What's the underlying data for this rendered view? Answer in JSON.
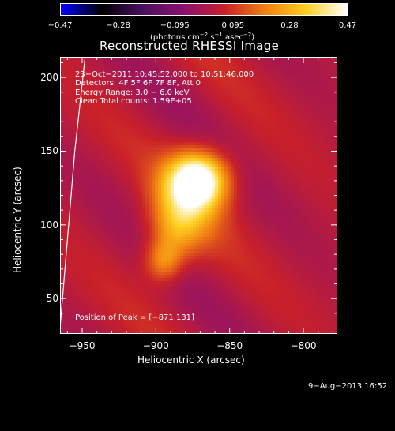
{
  "chart_data": {
    "type": "heatmap",
    "title": "Reconstructed RHESSI Image",
    "xlabel": "Heliocentric X (arcsec)",
    "ylabel": "Heliocentric Y (arcsec)",
    "xlim": [
      -965,
      -777
    ],
    "ylim": [
      26,
      214
    ],
    "x_ticks": [
      "−950",
      "−900",
      "−850",
      "−800"
    ],
    "x_tick_values": [
      -950,
      -900,
      -850,
      -800
    ],
    "y_ticks": [
      "50",
      "100",
      "150",
      "200"
    ],
    "y_tick_values": [
      50,
      100,
      150,
      200
    ],
    "colorbar": {
      "min": -0.47,
      "max": 0.47,
      "tick_labels": [
        "−0.47",
        "−0.28",
        "−0.095",
        "0.095",
        "0.28",
        "0.47"
      ],
      "tick_values": [
        -0.47,
        -0.28,
        -0.095,
        0.095,
        0.28,
        0.47
      ],
      "units_prefix": "(photons cm",
      "units_exp1": "−2",
      "units_mid": " s",
      "units_exp2": "−1",
      "units_mid2": " asec",
      "units_exp3": "−2",
      "units_suffix": ")"
    },
    "info_lines": [
      "23−Oct−2011 10:45:52.000 to 10:51:46.000",
      "Detectors: 4F 5F 6F 7F 8F, Att 0",
      "Energy Range: 3.0 − 6.0 keV",
      "Clean     Total counts: 1.59E+05"
    ],
    "peak_label": "Position of Peak = [−871,131]",
    "sources": [
      {
        "x": -871,
        "y": 131,
        "peak": 0.47,
        "sigma_x": 14,
        "sigma_y": 13
      },
      {
        "x": -880,
        "y": 112,
        "peak": 0.2,
        "sigma_x": 16,
        "sigma_y": 20
      },
      {
        "x": -895,
        "y": 75,
        "peak": 0.2,
        "sigma_x": 9,
        "sigma_y": 10
      },
      {
        "x": -888,
        "y": 95,
        "peak": 0.12,
        "sigma_x": 12,
        "sigma_y": 14
      }
    ],
    "limb_curve": [
      [
        -965,
        30
      ],
      [
        -960,
        90
      ],
      [
        -955,
        150
      ],
      [
        -948,
        214
      ]
    ]
  },
  "footer": {
    "timestamp": "9−Aug−2013 16:52"
  },
  "colors": {
    "background": "#000000",
    "foreground": "#ffffff",
    "colormap": [
      "#0000ff",
      "#000000",
      "#4a1060",
      "#8a1070",
      "#c8202a",
      "#f08010",
      "#ffd020",
      "#ffffff"
    ]
  }
}
